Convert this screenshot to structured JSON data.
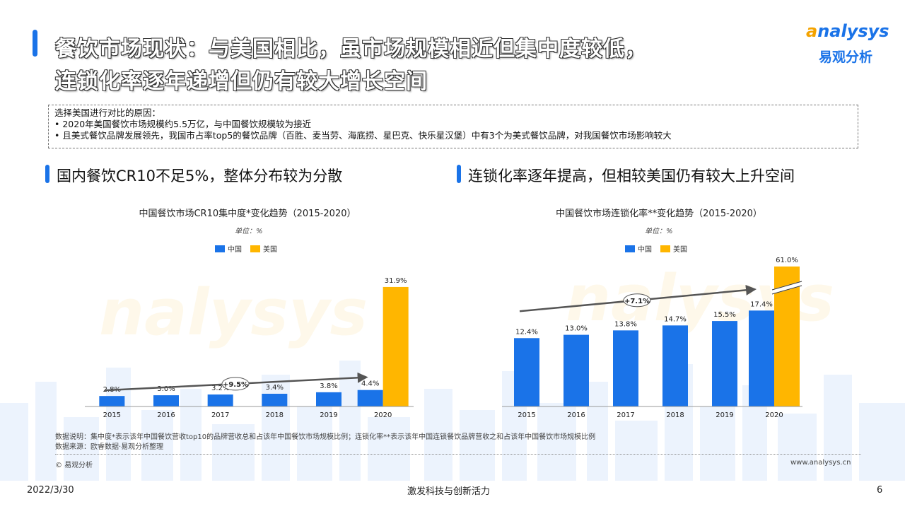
{
  "title": {
    "line1": "餐饮市场现状：与美国相比，虽市场规模相近但集中度较低，",
    "line2": "连锁化率逐年递增但仍有较大增长空间"
  },
  "logo": {
    "brand_a": "a",
    "brand_rest": "nalysys",
    "cn": "易观分析"
  },
  "reasons": {
    "heading": "选择美国进行对比的原因：",
    "items": [
      "•   2020年美国餐饮市场规模约5.5万亿，与中国餐饮规模较为接近",
      "•   且美式餐饮品牌发展领先，我国市占率top5的餐饮品牌（百胜、麦当劳、海底捞、星巴克、快乐星汉堡）中有3个为美式餐饮品牌，对我国餐饮市场影响较大"
    ]
  },
  "sections": {
    "left": "国内餐饮CR10不足5%，整体分布较为分散",
    "right": "连锁化率逐年提高，但相较美国仍有较大上升空间"
  },
  "chart_data": [
    {
      "type": "bar",
      "title": "中国餐饮市场CR10集中度*变化趋势（2015-2020）",
      "unit": "单位：%",
      "categories": [
        "2015",
        "2016",
        "2017",
        "2018",
        "2019",
        "2020"
      ],
      "series": [
        {
          "name": "中国",
          "color": "#1a73e8",
          "values": [
            2.8,
            3.0,
            3.2,
            3.4,
            3.8,
            4.4
          ]
        },
        {
          "name": "美国",
          "color": "#ffb600",
          "values": [
            null,
            null,
            null,
            null,
            null,
            31.9
          ]
        }
      ],
      "labels": [
        "2.8%",
        "3.0%",
        "3.2%",
        "3.4%",
        "3.8%",
        "4.4%",
        "31.9%"
      ],
      "trend_label": "+9.5%",
      "ylim": [
        0,
        32
      ]
    },
    {
      "type": "bar",
      "title": "中国餐饮市场连锁化率**变化趋势（2015-2020）",
      "unit": "单位：%",
      "categories": [
        "2015",
        "2016",
        "2017",
        "2018",
        "2019",
        "2020"
      ],
      "series": [
        {
          "name": "中国",
          "color": "#1a73e8",
          "values": [
            12.4,
            13.0,
            13.8,
            14.7,
            15.5,
            17.4
          ]
        },
        {
          "name": "美国",
          "color": "#ffb600",
          "values": [
            null,
            null,
            null,
            null,
            null,
            61.0
          ]
        }
      ],
      "labels": [
        "12.4%",
        "13.0%",
        "13.8%",
        "14.7%",
        "15.5%",
        "17.4%",
        "61.0%"
      ],
      "trend_label": "+7.1%",
      "axis_break": true
    }
  ],
  "notes": {
    "explain": "数据说明：集中度*表示该年中国餐饮营收top10的品牌营收总和占该年中国餐饮市场规模比例；连锁化率**表示该年中国连锁餐饮品牌营收之和占该年中国餐饮市场规模比例",
    "source": "数据来源：欧睿数据·易观分析整理"
  },
  "footer": {
    "copyright": "© 易观分析",
    "url": "www.analysys.cn",
    "date": "2022/3/30",
    "slogan": "激发科技与创新活力",
    "page": "6"
  }
}
